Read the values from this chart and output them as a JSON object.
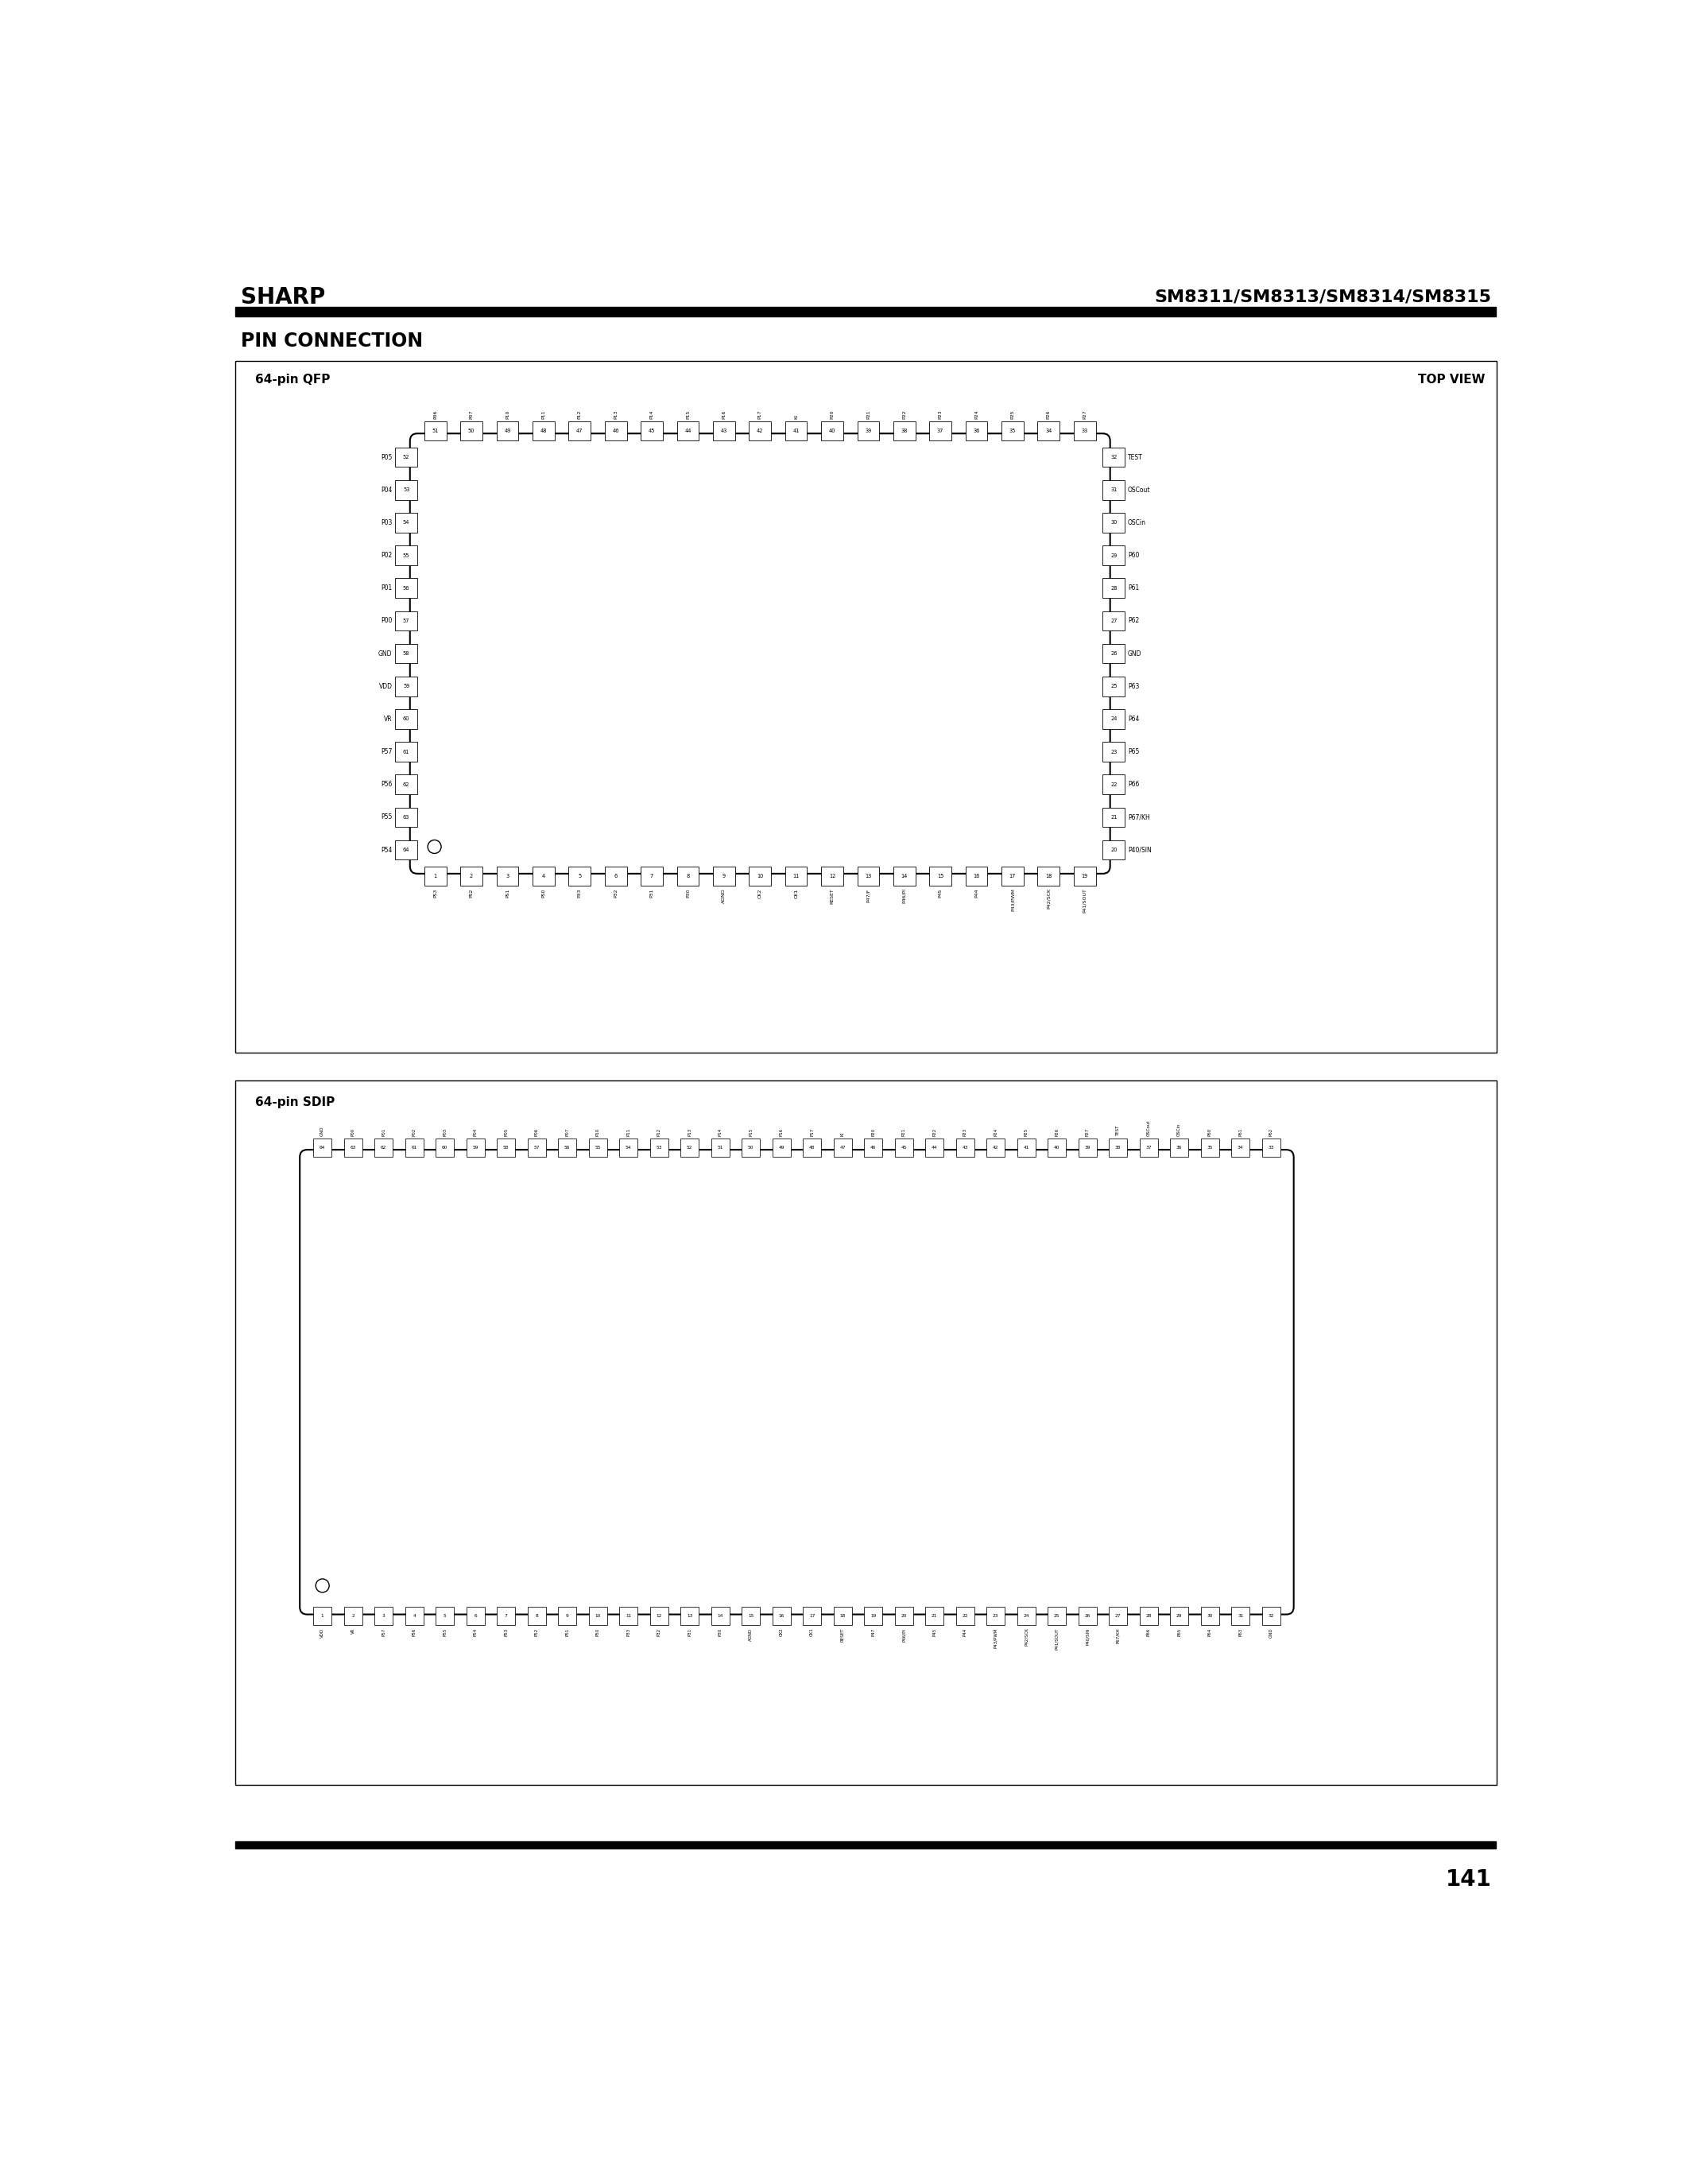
{
  "page_width": 21.25,
  "page_height": 27.47,
  "bg_color": "#ffffff",
  "header_left": "SHARP",
  "header_right": "SM8311/SM8313/SM8314/SM8315",
  "section_title": "PIN CONNECTION",
  "qfp_label": "64-pin QFP",
  "top_view_label": "TOP VIEW",
  "sdip_label": "64-pin SDIP",
  "page_number": "141",
  "qfp_top_pins": [
    {
      "num": "51",
      "name": "P06"
    },
    {
      "num": "50",
      "name": "P07"
    },
    {
      "num": "49",
      "name": "P10"
    },
    {
      "num": "48",
      "name": "P11"
    },
    {
      "num": "47",
      "name": "P12"
    },
    {
      "num": "46",
      "name": "P13"
    },
    {
      "num": "45",
      "name": "P14"
    },
    {
      "num": "44",
      "name": "P15"
    },
    {
      "num": "43",
      "name": "P16"
    },
    {
      "num": "42",
      "name": "P17"
    },
    {
      "num": "41",
      "name": "KI"
    },
    {
      "num": "40",
      "name": "P20"
    },
    {
      "num": "39",
      "name": "P21"
    },
    {
      "num": "38",
      "name": "P22"
    },
    {
      "num": "37",
      "name": "P23"
    },
    {
      "num": "36",
      "name": "P24"
    },
    {
      "num": "35",
      "name": "P25"
    },
    {
      "num": "34",
      "name": "P26"
    },
    {
      "num": "33",
      "name": "P27"
    }
  ],
  "qfp_left_pins": [
    {
      "num": "52",
      "name": "P05"
    },
    {
      "num": "53",
      "name": "P04"
    },
    {
      "num": "54",
      "name": "P03"
    },
    {
      "num": "55",
      "name": "P02"
    },
    {
      "num": "56",
      "name": "P01"
    },
    {
      "num": "57",
      "name": "P00"
    },
    {
      "num": "58",
      "name": "GND"
    },
    {
      "num": "59",
      "name": "VDD"
    },
    {
      "num": "60",
      "name": "VR"
    },
    {
      "num": "61",
      "name": "P57"
    },
    {
      "num": "62",
      "name": "P56"
    },
    {
      "num": "63",
      "name": "P55"
    },
    {
      "num": "64",
      "name": "P54"
    }
  ],
  "qfp_right_pins": [
    {
      "num": "32",
      "name": "TEST"
    },
    {
      "num": "31",
      "name": "OSCout"
    },
    {
      "num": "30",
      "name": "OSCin"
    },
    {
      "num": "29",
      "name": "P60"
    },
    {
      "num": "28",
      "name": "P61"
    },
    {
      "num": "27",
      "name": "P62"
    },
    {
      "num": "26",
      "name": "GND"
    },
    {
      "num": "25",
      "name": "P63"
    },
    {
      "num": "24",
      "name": "P64"
    },
    {
      "num": "23",
      "name": "P65"
    },
    {
      "num": "22",
      "name": "P66"
    },
    {
      "num": "21",
      "name": "P67/KH"
    },
    {
      "num": "20",
      "name": "P40/SIN"
    }
  ],
  "qfp_bottom_pins": [
    {
      "num": "1",
      "name": "PS3"
    },
    {
      "num": "2",
      "name": "PS2"
    },
    {
      "num": "3",
      "name": "PS1"
    },
    {
      "num": "4",
      "name": "PS0"
    },
    {
      "num": "5",
      "name": "P33"
    },
    {
      "num": "6",
      "name": "P32"
    },
    {
      "num": "7",
      "name": "P31"
    },
    {
      "num": "8",
      "name": "P30"
    },
    {
      "num": "9",
      "name": "AGND"
    },
    {
      "num": "10",
      "name": "CK2"
    },
    {
      "num": "11",
      "name": "CK1"
    },
    {
      "num": "12",
      "name": "RESET"
    },
    {
      "num": "13",
      "name": "P47/F"
    },
    {
      "num": "14",
      "name": "P46/PI"
    },
    {
      "num": "15",
      "name": "P45"
    },
    {
      "num": "16",
      "name": "P44"
    },
    {
      "num": "17",
      "name": "P43/PWM"
    },
    {
      "num": "18",
      "name": "P42/SCK"
    },
    {
      "num": "19",
      "name": "P41/SOUT"
    }
  ],
  "sdip_top_pins": [
    {
      "num": "64",
      "name": "GND"
    },
    {
      "num": "63",
      "name": "P00"
    },
    {
      "num": "62",
      "name": "P01"
    },
    {
      "num": "61",
      "name": "P02"
    },
    {
      "num": "60",
      "name": "P03"
    },
    {
      "num": "59",
      "name": "P04"
    },
    {
      "num": "58",
      "name": "P05"
    },
    {
      "num": "57",
      "name": "P06"
    },
    {
      "num": "56",
      "name": "P07"
    },
    {
      "num": "55",
      "name": "P10"
    },
    {
      "num": "54",
      "name": "P11"
    },
    {
      "num": "53",
      "name": "P12"
    },
    {
      "num": "52",
      "name": "P13"
    },
    {
      "num": "51",
      "name": "P14"
    },
    {
      "num": "50",
      "name": "P15"
    },
    {
      "num": "49",
      "name": "P16"
    },
    {
      "num": "48",
      "name": "P17"
    },
    {
      "num": "47",
      "name": "KI"
    },
    {
      "num": "46",
      "name": "P20"
    },
    {
      "num": "45",
      "name": "P21"
    },
    {
      "num": "44",
      "name": "P22"
    },
    {
      "num": "43",
      "name": "P23"
    },
    {
      "num": "42",
      "name": "P24"
    },
    {
      "num": "41",
      "name": "P25"
    },
    {
      "num": "40",
      "name": "P26"
    },
    {
      "num": "39",
      "name": "P27"
    },
    {
      "num": "38",
      "name": "TEST"
    },
    {
      "num": "37",
      "name": "OSCout"
    },
    {
      "num": "36",
      "name": "OSCin"
    },
    {
      "num": "35",
      "name": "P60"
    },
    {
      "num": "34",
      "name": "P61"
    },
    {
      "num": "33",
      "name": "P62"
    }
  ],
  "sdip_bottom_pins": [
    {
      "num": "1",
      "name": "VDD"
    },
    {
      "num": "2",
      "name": "VR"
    },
    {
      "num": "3",
      "name": "P57"
    },
    {
      "num": "4",
      "name": "P56"
    },
    {
      "num": "5",
      "name": "P55"
    },
    {
      "num": "6",
      "name": "P54"
    },
    {
      "num": "7",
      "name": "P53"
    },
    {
      "num": "8",
      "name": "P52"
    },
    {
      "num": "9",
      "name": "P51"
    },
    {
      "num": "10",
      "name": "P50"
    },
    {
      "num": "11",
      "name": "P33"
    },
    {
      "num": "12",
      "name": "P32"
    },
    {
      "num": "13",
      "name": "P31"
    },
    {
      "num": "14",
      "name": "P30"
    },
    {
      "num": "15",
      "name": "AGND"
    },
    {
      "num": "16",
      "name": "CK2"
    },
    {
      "num": "17",
      "name": "CK1"
    },
    {
      "num": "18",
      "name": "RESET"
    },
    {
      "num": "19",
      "name": "P47"
    },
    {
      "num": "20",
      "name": "P46/PI"
    },
    {
      "num": "21",
      "name": "P45"
    },
    {
      "num": "22",
      "name": "P44"
    },
    {
      "num": "23",
      "name": "P43/PWM"
    },
    {
      "num": "24",
      "name": "P42/SCK"
    },
    {
      "num": "25",
      "name": "P41/SOUT"
    },
    {
      "num": "26",
      "name": "P40/SIN"
    },
    {
      "num": "27",
      "name": "P67/KH"
    },
    {
      "num": "28",
      "name": "P66"
    },
    {
      "num": "29",
      "name": "P65"
    },
    {
      "num": "30",
      "name": "P64"
    },
    {
      "num": "31",
      "name": "P63"
    },
    {
      "num": "32",
      "name": "GND"
    }
  ]
}
